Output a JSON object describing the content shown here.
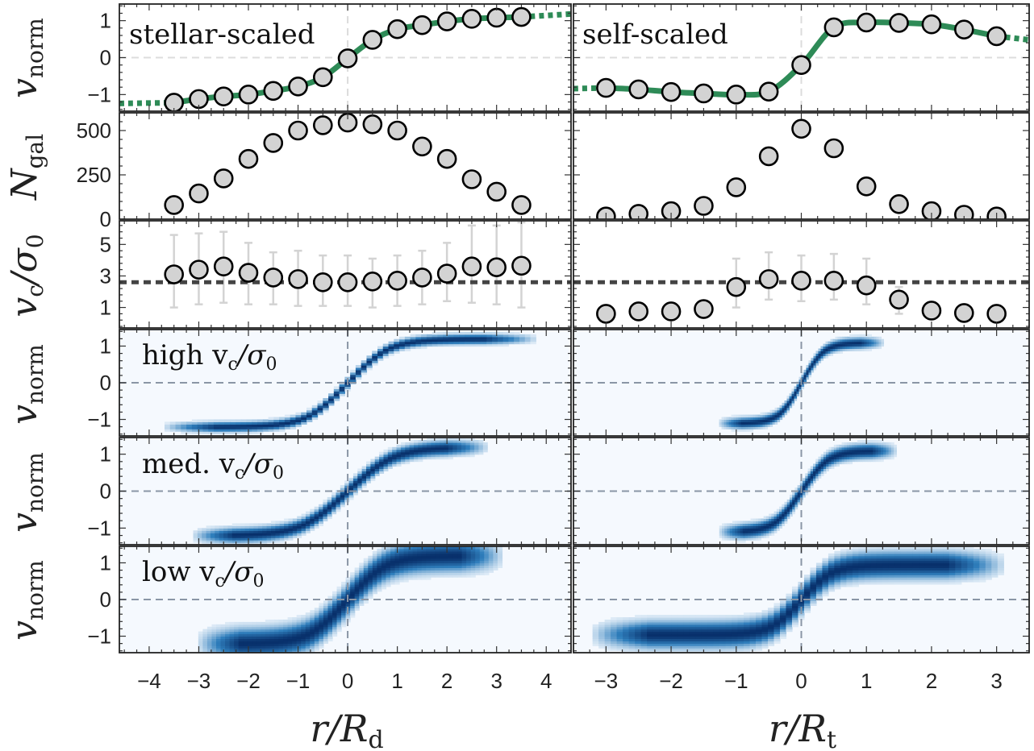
{
  "figure": {
    "left_xlabel": "r/R",
    "left_xlabel_sub": "d",
    "right_xlabel": "r/R",
    "right_xlabel_sub": "t",
    "row_ylabels": [
      {
        "main": "v",
        "sub": "norm"
      },
      {
        "main": "N",
        "sub": "gal"
      },
      {
        "main": "v",
        "sub": "c",
        "tail": "/σ",
        "tail_sub": "0"
      },
      {
        "main": "v",
        "sub": "norm"
      },
      {
        "main": "v",
        "sub": "norm"
      },
      {
        "main": "v",
        "sub": "norm"
      }
    ],
    "panel_labels": {
      "stellar": "stellar-scaled",
      "self": "self-scaled",
      "high": "high v",
      "med": "med. v",
      "low": "low v",
      "vc_sub": "c",
      "vc_tail": "/σ",
      "vc_tail_sub": "0"
    },
    "colors": {
      "green": "#2e8b57",
      "marker_fill": "#d3d3d3",
      "marker_edge": "#000000",
      "errorbar": "#d3d3d3",
      "dashed_ref": "#444444",
      "heatmap_bg": "#f5f9fe",
      "heatmap_peak": "#08306b"
    }
  },
  "chart_data": [
    {
      "type": "line",
      "panel": "row1-left",
      "title": "stellar-scaled",
      "xlim": [
        -4.6,
        4.5
      ],
      "ylim": [
        -1.45,
        1.45
      ],
      "yticks": [
        -1,
        0,
        1
      ],
      "x": [
        -3.5,
        -3.0,
        -2.5,
        -2.0,
        -1.5,
        -1.0,
        -0.5,
        0.0,
        0.5,
        1.0,
        1.5,
        2.0,
        2.5,
        3.0,
        3.5
      ],
      "y": [
        -1.22,
        -1.12,
        -1.05,
        -1.0,
        -0.9,
        -0.78,
        -0.53,
        -0.02,
        0.48,
        0.77,
        0.88,
        0.98,
        1.05,
        1.08,
        1.1
      ],
      "model_line": "smooth green fit, dotted beyond data"
    },
    {
      "type": "line",
      "panel": "row1-right",
      "title": "self-scaled",
      "xlim": [
        -3.5,
        3.5
      ],
      "ylim": [
        -1.45,
        1.45
      ],
      "yticks": [
        -1,
        0,
        1
      ],
      "x": [
        -3.0,
        -2.5,
        -2.0,
        -1.5,
        -1.0,
        -0.5,
        0.0,
        0.5,
        1.0,
        1.5,
        2.0,
        2.5,
        3.0
      ],
      "y": [
        -0.82,
        -0.86,
        -0.93,
        -0.97,
        -1.0,
        -0.92,
        -0.2,
        0.82,
        0.95,
        0.94,
        0.9,
        0.76,
        0.58
      ],
      "model_line": "smooth green fit, dotted beyond data"
    },
    {
      "type": "scatter",
      "panel": "row2-left",
      "xlim": [
        -4.6,
        4.5
      ],
      "ylim": [
        0,
        600
      ],
      "yticks": [
        0,
        250,
        500
      ],
      "x": [
        -3.5,
        -3.0,
        -2.5,
        -2.0,
        -1.5,
        -1.0,
        -0.5,
        0.0,
        0.5,
        1.0,
        1.5,
        2.0,
        2.5,
        3.0,
        3.5
      ],
      "y": [
        80,
        145,
        230,
        340,
        430,
        500,
        530,
        545,
        535,
        500,
        410,
        340,
        225,
        155,
        80
      ]
    },
    {
      "type": "scatter",
      "panel": "row2-right",
      "xlim": [
        -3.5,
        3.5
      ],
      "ylim": [
        0,
        600
      ],
      "yticks": [
        0,
        250,
        500
      ],
      "x": [
        -3.0,
        -2.5,
        -2.0,
        -1.5,
        -1.0,
        -0.5,
        0.0,
        0.5,
        1.0,
        1.5,
        2.0,
        2.5,
        3.0
      ],
      "y": [
        15,
        30,
        45,
        75,
        180,
        355,
        510,
        400,
        185,
        85,
        45,
        25,
        15
      ]
    },
    {
      "type": "scatter",
      "panel": "row3-left",
      "xlim": [
        -4.6,
        4.5
      ],
      "ylim": [
        -0.3,
        6.5
      ],
      "yticks": [
        1,
        3,
        5
      ],
      "reference_line": 2.6,
      "x": [
        -3.5,
        -3.0,
        -2.5,
        -2.0,
        -1.5,
        -1.0,
        -0.5,
        0.0,
        0.5,
        1.0,
        1.5,
        2.0,
        2.5,
        3.0,
        3.5
      ],
      "y": [
        3.1,
        3.4,
        3.6,
        3.2,
        2.9,
        2.8,
        2.6,
        2.6,
        2.65,
        2.7,
        2.9,
        3.15,
        3.6,
        3.55,
        3.65
      ],
      "err_low": [
        1.0,
        1.2,
        1.3,
        1.2,
        1.2,
        1.1,
        1.1,
        1.1,
        1.0,
        1.1,
        1.2,
        1.4,
        1.3,
        1.2,
        1.0
      ],
      "err_high": [
        5.6,
        5.7,
        5.8,
        5.1,
        4.5,
        4.6,
        4.3,
        4.3,
        4.1,
        4.3,
        4.6,
        5.1,
        6.2,
        6.2,
        6.4
      ]
    },
    {
      "type": "scatter",
      "panel": "row3-right",
      "xlim": [
        -3.5,
        3.5
      ],
      "ylim": [
        -0.3,
        6.5
      ],
      "yticks": [
        1,
        3,
        5
      ],
      "reference_line": 2.6,
      "x": [
        -3.0,
        -2.5,
        -2.0,
        -1.5,
        -1.0,
        -0.5,
        0.0,
        0.5,
        1.0,
        1.5,
        2.0,
        2.5,
        3.0
      ],
      "y": [
        0.6,
        0.75,
        0.75,
        0.9,
        2.3,
        2.8,
        2.7,
        2.7,
        2.4,
        1.5,
        0.8,
        0.65,
        0.6
      ],
      "err_low": [
        null,
        null,
        null,
        null,
        1.0,
        1.5,
        1.4,
        1.5,
        1.2,
        0.6,
        null,
        null,
        null
      ],
      "err_high": [
        null,
        null,
        null,
        null,
        4.1,
        4.5,
        4.3,
        4.4,
        4.1,
        2.3,
        null,
        null,
        null
      ]
    },
    {
      "type": "heatmap",
      "panel": "row4-left",
      "title": "high v_c/σ_0",
      "xlim": [
        -4.6,
        4.5
      ],
      "ylim": [
        -1.45,
        1.45
      ],
      "yticks": [
        -1,
        0,
        1
      ],
      "x_range": [
        -3.8,
        3.9
      ],
      "curve": {
        "amp": 1.2,
        "scale": 0.8,
        "width": 0.08,
        "fade_start": 2.2
      }
    },
    {
      "type": "heatmap",
      "panel": "row4-right",
      "xlim": [
        -3.5,
        3.5
      ],
      "ylim": [
        -1.45,
        1.45
      ],
      "yticks": [
        -1,
        0,
        1
      ],
      "x_range": [
        -1.3,
        1.3
      ],
      "curve": {
        "amp": 1.1,
        "scale": 0.33,
        "width": 0.09,
        "fade_start": 0.6
      }
    },
    {
      "type": "heatmap",
      "panel": "row5-left",
      "title": "med. v_c/σ_0",
      "xlim": [
        -4.6,
        4.5
      ],
      "ylim": [
        -1.45,
        1.45
      ],
      "yticks": [
        -1,
        0,
        1
      ],
      "x_range": [
        -3.2,
        2.9
      ],
      "curve": {
        "amp": 1.2,
        "scale": 0.9,
        "width": 0.12,
        "fade_start": 1.8
      }
    },
    {
      "type": "heatmap",
      "panel": "row5-right",
      "xlim": [
        -3.5,
        3.5
      ],
      "ylim": [
        -1.45,
        1.45
      ],
      "yticks": [
        -1,
        0,
        1
      ],
      "x_range": [
        -1.3,
        1.5
      ],
      "curve": {
        "amp": 1.1,
        "scale": 0.4,
        "width": 0.12,
        "fade_start": 0.8
      }
    },
    {
      "type": "heatmap",
      "panel": "row6-left",
      "title": "low v_c/σ_0",
      "xlim": [
        -4.6,
        4.5
      ],
      "ylim": [
        -1.45,
        1.45
      ],
      "yticks": [
        -1,
        0,
        1
      ],
      "x_range": [
        -3.1,
        3.2
      ],
      "curve": {
        "amp": 1.2,
        "scale": 0.75,
        "width": 0.25,
        "fade_start": 1.6
      }
    },
    {
      "type": "heatmap",
      "panel": "row6-right",
      "xlim": [
        -3.5,
        3.5
      ],
      "ylim": [
        -1.45,
        1.45
      ],
      "yticks": [
        -1,
        0,
        1
      ],
      "x_range": [
        -3.3,
        3.2
      ],
      "curve": {
        "amp": 0.95,
        "scale": 0.45,
        "width": 0.22,
        "fade_start": 2.0
      }
    }
  ]
}
